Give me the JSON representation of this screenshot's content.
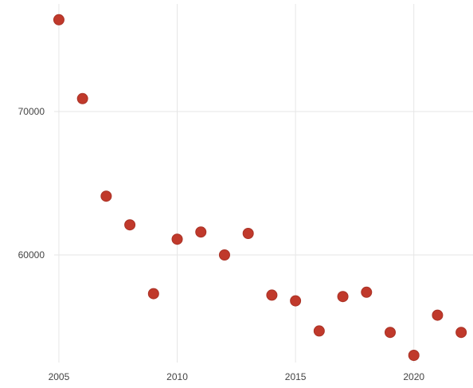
{
  "chart_data": {
    "type": "scatter",
    "title": "",
    "xlabel": "",
    "ylabel": "",
    "xlim": [
      2004.8,
      2022.5
    ],
    "ylim": [
      52500,
      77500
    ],
    "x_ticks": [
      2005,
      2010,
      2015,
      2020
    ],
    "y_ticks": [
      60000,
      70000
    ],
    "x_tick_labels": [
      "2005",
      "2010",
      "2015",
      "2020"
    ],
    "y_tick_labels": [
      "60000",
      "70000"
    ],
    "grid": true,
    "legend": "none",
    "series": [
      {
        "x": [
          2005,
          2006,
          2007,
          2008,
          2009,
          2010,
          2011,
          2012,
          2013,
          2014,
          2015,
          2016,
          2017,
          2018,
          2019,
          2020,
          2021,
          2022
        ],
        "y": [
          76400,
          70900,
          64100,
          62100,
          57300,
          61100,
          61600,
          60000,
          61500,
          57200,
          56800,
          54700,
          57100,
          57400,
          54600,
          53000,
          55800,
          54600
        ],
        "color": "#c0392b",
        "edge_color": "#a93226"
      }
    ]
  }
}
